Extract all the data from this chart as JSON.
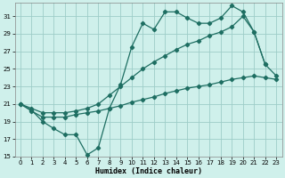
{
  "xlabel": "Humidex (Indice chaleur)",
  "bg_color": "#cff0eb",
  "grid_color": "#9dcdc8",
  "line_color": "#1e6e62",
  "xlim": [
    -0.5,
    23.5
  ],
  "ylim": [
    15,
    32.5
  ],
  "yticks": [
    15,
    17,
    19,
    21,
    23,
    25,
    27,
    29,
    31
  ],
  "xticks": [
    0,
    1,
    2,
    3,
    4,
    5,
    6,
    7,
    8,
    9,
    10,
    11,
    12,
    13,
    14,
    15,
    16,
    17,
    18,
    19,
    20,
    21,
    22,
    23
  ],
  "line1_x": [
    0,
    1,
    2,
    3,
    4,
    5,
    6,
    7,
    8,
    9,
    10,
    11,
    12,
    13,
    14,
    15,
    16,
    17,
    18,
    19,
    20,
    21,
    22,
    23
  ],
  "line1_y": [
    21,
    20.3,
    19,
    18.2,
    17.5,
    17.5,
    15.2,
    16,
    20.5,
    23.2,
    27.5,
    30.2,
    29.5,
    31.5,
    31.5,
    30.8,
    30.2,
    30.2,
    30.8,
    32.2,
    31.5,
    29.2,
    25.5,
    24.2
  ],
  "line2_x": [
    0,
    1,
    2,
    3,
    4,
    5,
    6,
    7,
    8,
    9,
    10,
    11,
    12,
    13,
    14,
    15,
    16,
    17,
    18,
    19,
    20,
    21,
    22
  ],
  "line2_y": [
    21,
    20.5,
    20.0,
    20.0,
    20.0,
    20.2,
    20.5,
    21.0,
    22.0,
    23.0,
    24.0,
    25.0,
    25.8,
    26.5,
    27.2,
    27.8,
    28.2,
    28.8,
    29.2,
    29.8,
    31.0,
    29.2,
    25.5
  ],
  "line3_x": [
    0,
    1,
    2,
    3,
    4,
    5,
    6,
    7,
    8,
    9,
    10,
    11,
    12,
    13,
    14,
    15,
    16,
    17,
    18,
    19,
    20,
    21,
    22,
    23
  ],
  "line3_y": [
    21,
    20.2,
    19.5,
    19.5,
    19.5,
    19.8,
    20.0,
    20.2,
    20.5,
    20.8,
    21.2,
    21.5,
    21.8,
    22.2,
    22.5,
    22.8,
    23.0,
    23.2,
    23.5,
    23.8,
    24.0,
    24.2,
    24.0,
    23.8
  ]
}
